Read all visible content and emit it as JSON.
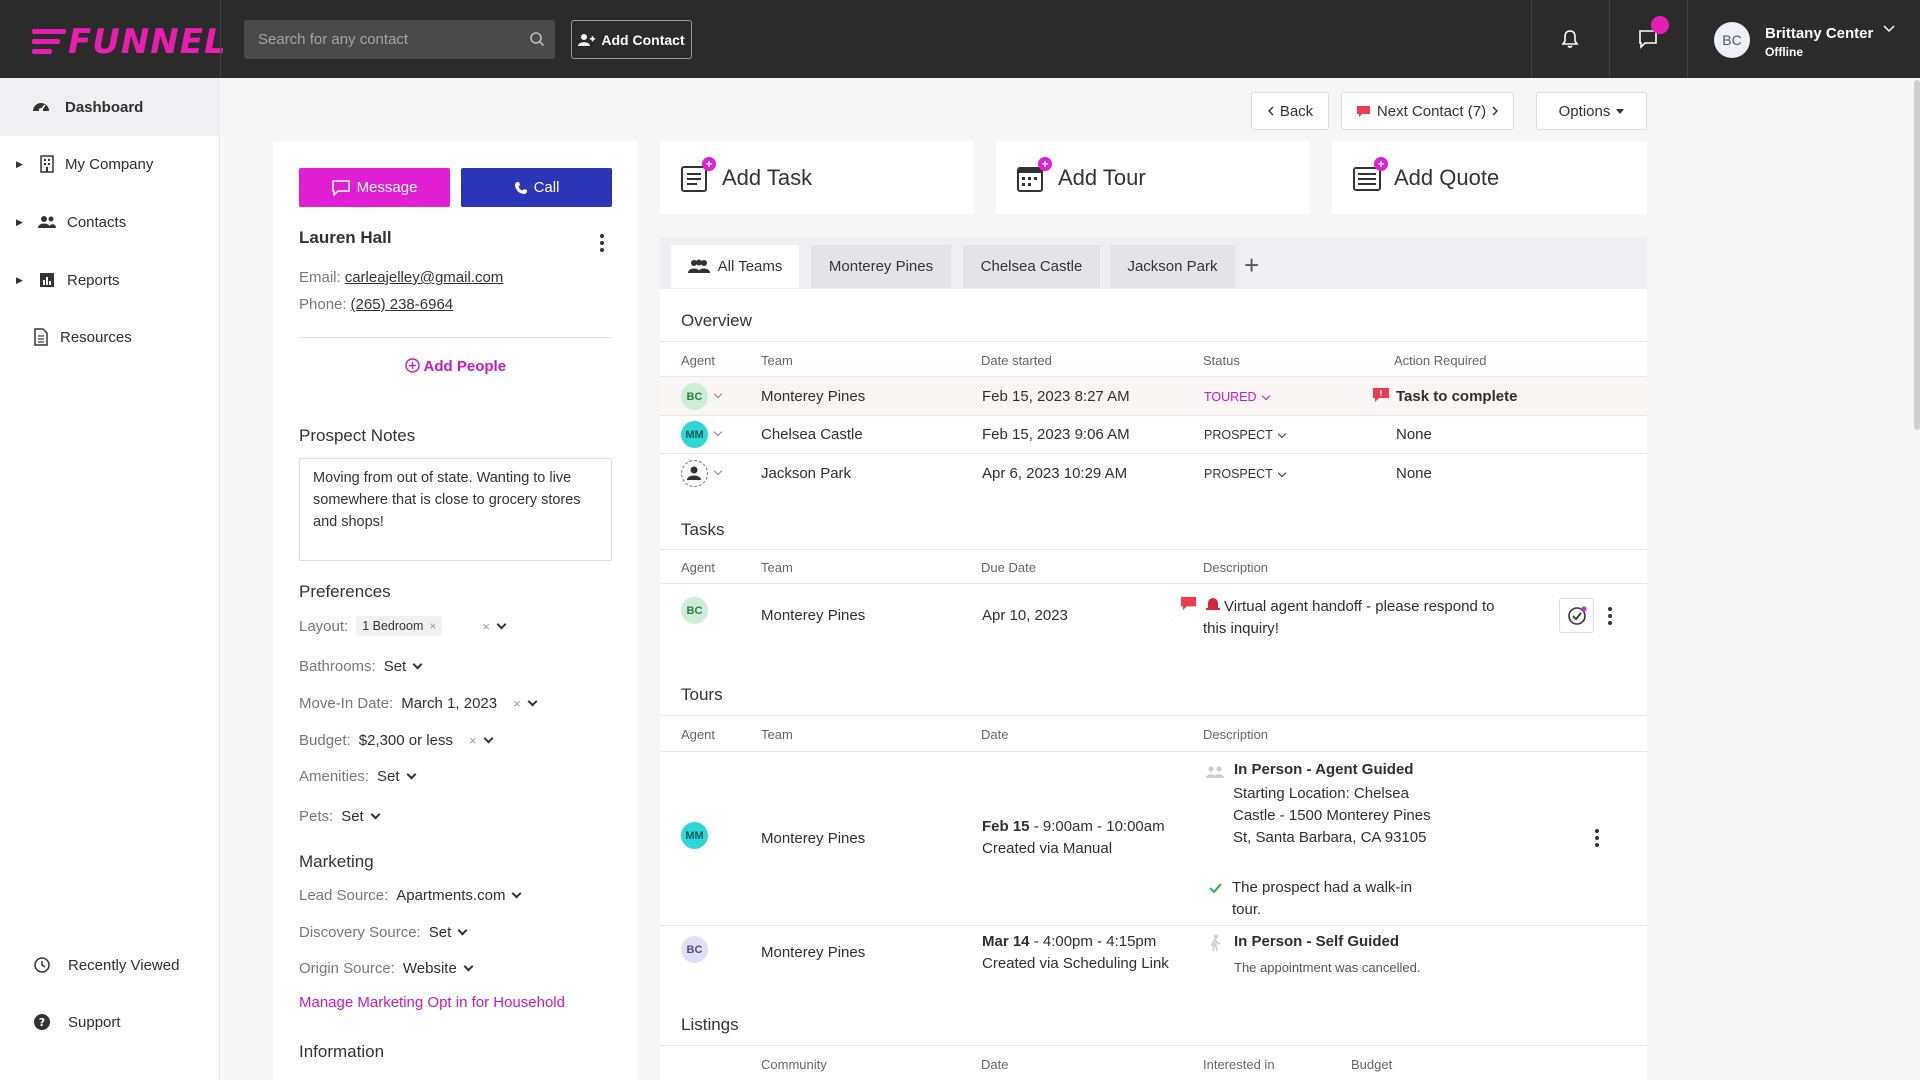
{
  "app": {
    "logo_text": "FUNNEL",
    "brand_color": "#e91eb0",
    "topbar_color": "#2b2b2b"
  },
  "search": {
    "placeholder": "Search for any contact"
  },
  "topbar": {
    "add_contact_label": "Add Contact"
  },
  "user": {
    "initials": "BC",
    "name": "Brittany Center",
    "status": "Offline"
  },
  "sidebar": {
    "items": [
      {
        "label": "Dashboard",
        "icon": "dashboard-icon"
      },
      {
        "label": "My Company",
        "icon": "building-icon"
      },
      {
        "label": "Contacts",
        "icon": "people-icon"
      },
      {
        "label": "Reports",
        "icon": "reports-icon"
      },
      {
        "label": "Resources",
        "icon": "document-icon"
      }
    ],
    "bottom": [
      {
        "label": "Recently Viewed",
        "icon": "history-icon"
      },
      {
        "label": "Support",
        "icon": "help-icon"
      }
    ]
  },
  "header_actions": {
    "back": "Back",
    "next_contact": "Next Contact (7)",
    "options": "Options"
  },
  "contact": {
    "message_label": "Message",
    "call_label": "Call",
    "name": "Lauren Hall",
    "email_label": "Email:",
    "email": "carleajelley@gmail.com",
    "phone_label": "Phone:",
    "phone": "(265) 238-6964",
    "add_people": "Add People",
    "notes_title": "Prospect Notes",
    "notes": "Moving from out of state. Wanting to live somewhere that is close to grocery stores and shops!",
    "preferences_title": "Preferences",
    "preferences": {
      "layout_label": "Layout:",
      "layout_value": "1 Bedroom",
      "bathrooms_label": "Bathrooms:",
      "bathrooms_value": "Set",
      "move_in_label": "Move-In Date:",
      "move_in_value": "March 1, 2023",
      "budget_label": "Budget:",
      "budget_value": "$2,300 or less",
      "amenities_label": "Amenities:",
      "amenities_value": "Set",
      "pets_label": "Pets:",
      "pets_value": "Set"
    },
    "marketing_title": "Marketing",
    "marketing": {
      "lead_source_label": "Lead Source:",
      "lead_source_value": "Apartments.com",
      "discovery_label": "Discovery Source:",
      "discovery_value": "Set",
      "origin_label": "Origin Source:",
      "origin_value": "Website",
      "manage_link": "Manage Marketing Opt in for Household"
    },
    "information_title": "Information"
  },
  "quick_actions": {
    "add_task": "Add Task",
    "add_tour": "Add Tour",
    "add_quote": "Add Quote"
  },
  "team_tabs": [
    "All Teams",
    "Monterey Pines",
    "Chelsea Castle",
    "Jackson Park"
  ],
  "overview": {
    "title": "Overview",
    "columns": [
      "Agent",
      "Team",
      "Date started",
      "Status",
      "Action Required"
    ],
    "rows": [
      {
        "agent": "BC",
        "team": "Monterey Pines",
        "date": "Feb 15, 2023 8:27 AM",
        "status": "TOURED",
        "action": "Task to complete"
      },
      {
        "agent": "MM",
        "team": "Chelsea Castle",
        "date": "Feb 15, 2023 9:06 AM",
        "status": "PROSPECT",
        "action": "None"
      },
      {
        "agent": "",
        "team": "Jackson Park",
        "date": "Apr 6, 2023 10:29 AM",
        "status": "PROSPECT",
        "action": "None"
      }
    ]
  },
  "tasks": {
    "title": "Tasks",
    "columns": [
      "Agent",
      "Team",
      "Due Date",
      "Description"
    ],
    "rows": [
      {
        "agent": "BC",
        "team": "Monterey Pines",
        "due": "Apr 10, 2023",
        "description": "Virtual agent handoff - please respond to this inquiry!"
      }
    ]
  },
  "tours": {
    "title": "Tours",
    "columns": [
      "Agent",
      "Team",
      "Date",
      "Description"
    ],
    "rows": [
      {
        "agent": "MM",
        "team": "Monterey Pines",
        "date_bold": "Feb 15",
        "date_rest": " - 9:00am - 10:00am",
        "created": "Created via Manual",
        "type": "In Person - Agent Guided",
        "location": "Starting Location: Chelsea Castle - 1500 Monterey Pines St, Santa Barbara, CA 93105",
        "note": "The prospect had a walk-in tour."
      },
      {
        "agent": "BC",
        "team": "Monterey Pines",
        "date_bold": "Mar 14",
        "date_rest": " - 4:00pm - 4:15pm",
        "created": "Created via Scheduling Link",
        "type": "In Person - Self Guided",
        "note": "The appointment was cancelled."
      }
    ]
  },
  "listings": {
    "title": "Listings",
    "columns": [
      "Community",
      "Date",
      "Interested in",
      "Budget"
    ]
  }
}
